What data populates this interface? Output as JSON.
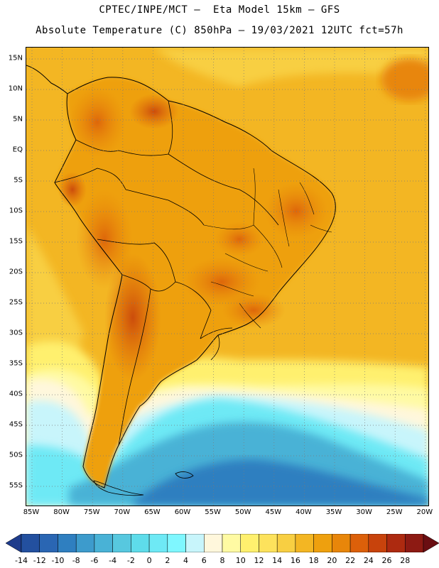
{
  "header": {
    "line1": "CPTEC/INPE/MCT –  Eta Model 15km – GFS",
    "line2": "Absolute Temperature (C) 850hPa – 19/03/2021 12UTC fct=57h"
  },
  "map": {
    "lat_labels": [
      "15N",
      "10N",
      "5N",
      "EQ",
      "5S",
      "10S",
      "15S",
      "20S",
      "25S",
      "30S",
      "35S",
      "40S",
      "45S",
      "50S",
      "55S"
    ],
    "lon_labels": [
      "85W",
      "80W",
      "75W",
      "70W",
      "65W",
      "60W",
      "55W",
      "50W",
      "45W",
      "40W",
      "35W",
      "30W",
      "25W",
      "20W"
    ]
  },
  "legend": {
    "levels": [
      "-14",
      "-12",
      "-10",
      "-8",
      "-6",
      "-4",
      "-2",
      "0",
      "2",
      "4",
      "6",
      "8",
      "10",
      "12",
      "14",
      "16",
      "18",
      "20",
      "22",
      "24",
      "26",
      "28"
    ],
    "colors": [
      "#1e3c8c",
      "#23509f",
      "#2a66b3",
      "#2f7fc0",
      "#3d9bcc",
      "#49b2d6",
      "#57c8df",
      "#5edcea",
      "#6ee9f5",
      "#7ff7ff",
      "#c8f5fb",
      "#fff7dc",
      "#fffaa3",
      "#fff06e",
      "#fde25c",
      "#f8cf42",
      "#f3b623",
      "#eea00e",
      "#e8860a",
      "#dc600a",
      "#c8430c",
      "#ad2a10",
      "#8d1a13",
      "#6a0e12"
    ]
  }
}
